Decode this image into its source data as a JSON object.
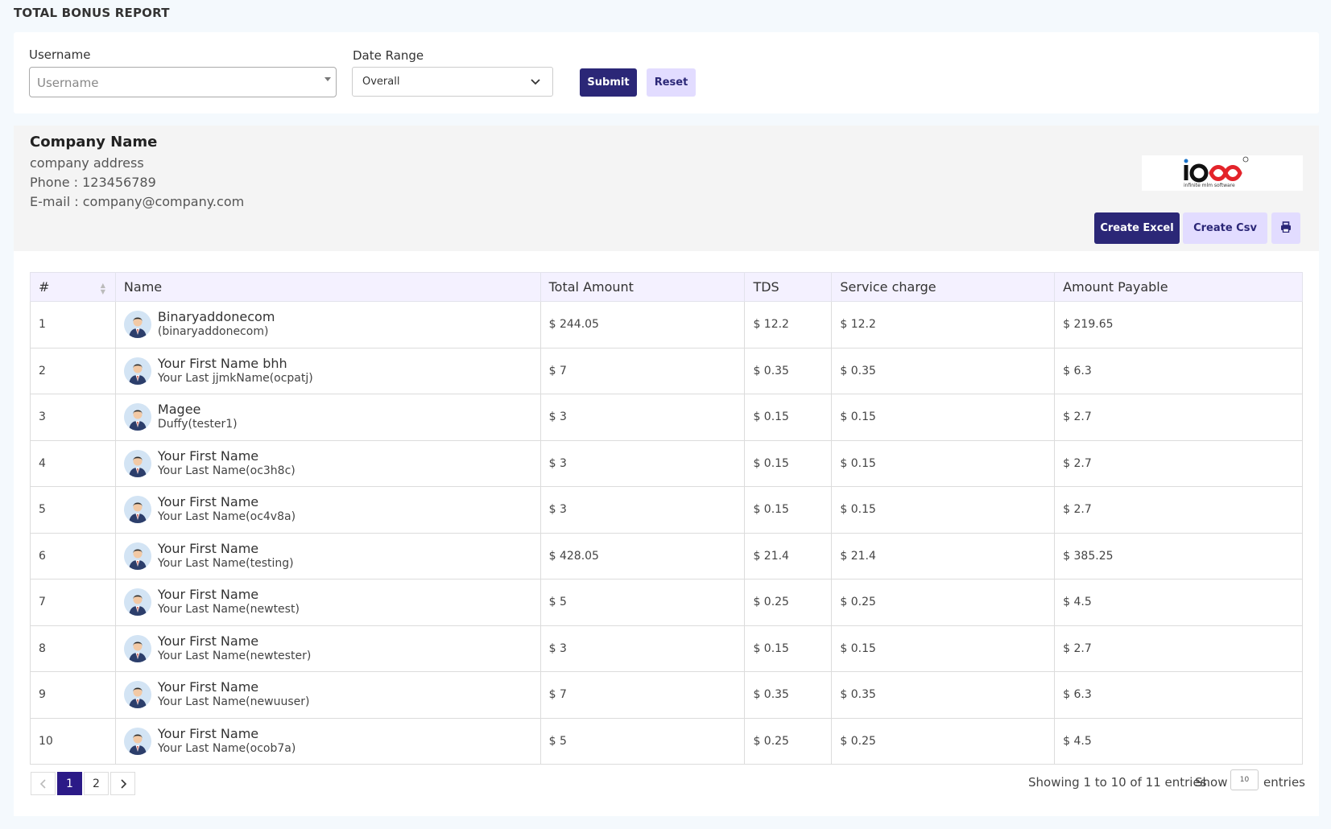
{
  "page": {
    "title": "TOTAL BONUS REPORT"
  },
  "filters": {
    "username_label": "Username",
    "username_placeholder": "Username",
    "date_range_label": "Date Range",
    "date_range_value": "Overall",
    "submit_label": "Submit",
    "reset_label": "Reset"
  },
  "company": {
    "name": "Company Name",
    "address": "company address",
    "phone": "Phone : 123456789",
    "email": "E-mail : company@company.com",
    "logo_text": "ioco",
    "logo_sub": "infinite mlm software"
  },
  "actions": {
    "excel_label": "Create Excel",
    "csv_label": "Create Csv",
    "print_icon": "print-icon"
  },
  "table": {
    "headers": [
      "#",
      "Name",
      "Total Amount",
      "TDS",
      "Service charge",
      "Amount Payable"
    ],
    "rows": [
      {
        "no": "1",
        "first": "Binaryaddonecom",
        "last": "(binaryaddonecom)",
        "total": "$ 244.05",
        "tds": "$ 12.2",
        "service": "$ 12.2",
        "payable": "$ 219.65"
      },
      {
        "no": "2",
        "first": "Your First Name bhh",
        "last": "Your Last jjmkName(ocpatj)",
        "total": "$ 7",
        "tds": "$ 0.35",
        "service": "$ 0.35",
        "payable": "$ 6.3"
      },
      {
        "no": "3",
        "first": "Magee",
        "last": "Duffy(tester1)",
        "total": "$ 3",
        "tds": "$ 0.15",
        "service": "$ 0.15",
        "payable": "$ 2.7"
      },
      {
        "no": "4",
        "first": "Your First Name",
        "last": "Your Last Name(oc3h8c)",
        "total": "$ 3",
        "tds": "$ 0.15",
        "service": "$ 0.15",
        "payable": "$ 2.7"
      },
      {
        "no": "5",
        "first": "Your First Name",
        "last": "Your Last Name(oc4v8a)",
        "total": "$ 3",
        "tds": "$ 0.15",
        "service": "$ 0.15",
        "payable": "$ 2.7"
      },
      {
        "no": "6",
        "first": "Your First Name",
        "last": "Your Last Name(testing)",
        "total": "$ 428.05",
        "tds": "$ 21.4",
        "service": "$ 21.4",
        "payable": "$ 385.25"
      },
      {
        "no": "7",
        "first": "Your First Name",
        "last": "Your Last Name(newtest)",
        "total": "$ 5",
        "tds": "$ 0.25",
        "service": "$ 0.25",
        "payable": "$ 4.5"
      },
      {
        "no": "8",
        "first": "Your First Name",
        "last": "Your Last Name(newtester)",
        "total": "$ 3",
        "tds": "$ 0.15",
        "service": "$ 0.15",
        "payable": "$ 2.7"
      },
      {
        "no": "9",
        "first": "Your First Name",
        "last": "Your Last Name(newuuser)",
        "total": "$ 7",
        "tds": "$ 0.35",
        "service": "$ 0.35",
        "payable": "$ 6.3"
      },
      {
        "no": "10",
        "first": "Your First Name",
        "last": "Your Last Name(ocob7a)",
        "total": "$ 5",
        "tds": "$ 0.25",
        "service": "$ 0.25",
        "payable": "$ 4.5"
      }
    ]
  },
  "pagination": {
    "pages": [
      "1",
      "2"
    ],
    "active_page": "1",
    "info": "Showing 1 to 10 of 11 entries",
    "show_label": "Show",
    "show_value": "10",
    "entries_label": "entries"
  },
  "colors": {
    "primary": "#2b2777",
    "secondary_bg": "#e2dcff",
    "header_bg": "#f4f1ff",
    "page_bg": "#f4f9fd"
  }
}
